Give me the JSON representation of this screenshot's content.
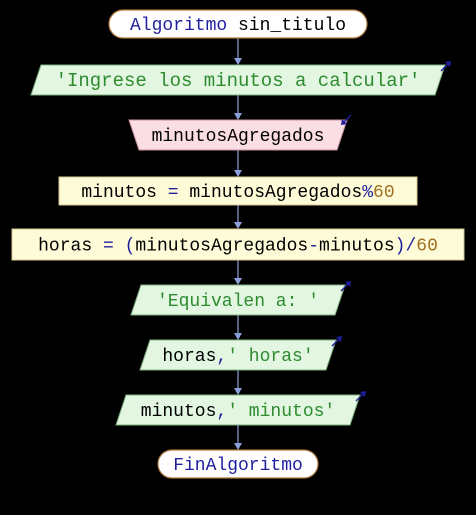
{
  "colors": {
    "background": "#000000",
    "connector": "#8aa0d8",
    "terminal_fill": "#ffffff",
    "terminal_border": "#b07a40",
    "terminal_text": "#1f1f9e",
    "output_fill": "#e2f6e2",
    "output_border": "#7fb07f",
    "output_string": "#2e8b2e",
    "input_fill": "#fbdde4",
    "input_border": "#c88fa0",
    "assign_fill": "#fdfbd8",
    "assign_border": "#d8c890",
    "identifier": "#000000",
    "operator": "#1f1f9e",
    "number": "#a07020",
    "io_arrow": "#1f1f9e"
  },
  "nodes": {
    "start": {
      "segments": [
        {
          "text": "Algoritmo",
          "kind": "keyword"
        },
        {
          "text": " sin_titulo",
          "kind": "identifier"
        }
      ]
    },
    "write_prompt": {
      "segments": [
        {
          "text": "'Ingrese los minutos a calcular'",
          "kind": "string"
        }
      ]
    },
    "read_input": {
      "segments": [
        {
          "text": "minutosAgregados",
          "kind": "identifier"
        }
      ]
    },
    "assign_minutes": {
      "segments": [
        {
          "text": "minutos ",
          "kind": "identifier"
        },
        {
          "text": "=",
          "kind": "operator"
        },
        {
          "text": " minutosAgregados",
          "kind": "identifier"
        },
        {
          "text": "%",
          "kind": "operator"
        },
        {
          "text": "60",
          "kind": "number"
        }
      ]
    },
    "assign_hours": {
      "segments": [
        {
          "text": "horas ",
          "kind": "identifier"
        },
        {
          "text": "=",
          "kind": "operator"
        },
        {
          "text": " ",
          "kind": "identifier"
        },
        {
          "text": "(",
          "kind": "operator"
        },
        {
          "text": "minutosAgregados",
          "kind": "identifier"
        },
        {
          "text": "-",
          "kind": "operator"
        },
        {
          "text": "minutos",
          "kind": "identifier"
        },
        {
          "text": ")",
          "kind": "operator"
        },
        {
          "text": "/",
          "kind": "operator"
        },
        {
          "text": "60",
          "kind": "number"
        }
      ]
    },
    "write_equivalen": {
      "segments": [
        {
          "text": "'Equivalen a: '",
          "kind": "string"
        }
      ]
    },
    "write_hours": {
      "segments": [
        {
          "text": "horas",
          "kind": "identifier"
        },
        {
          "text": ",",
          "kind": "operator"
        },
        {
          "text": "' horas'",
          "kind": "string"
        }
      ]
    },
    "write_minutes": {
      "segments": [
        {
          "text": "minutos",
          "kind": "identifier"
        },
        {
          "text": ",",
          "kind": "operator"
        },
        {
          "text": "' minutos'",
          "kind": "string"
        }
      ]
    },
    "end": {
      "segments": [
        {
          "text": "FinAlgoritmo",
          "kind": "keyword"
        }
      ]
    }
  },
  "order": [
    "start",
    "write_prompt",
    "read_input",
    "assign_minutes",
    "assign_hours",
    "write_equivalen",
    "write_hours",
    "write_minutes",
    "end"
  ]
}
